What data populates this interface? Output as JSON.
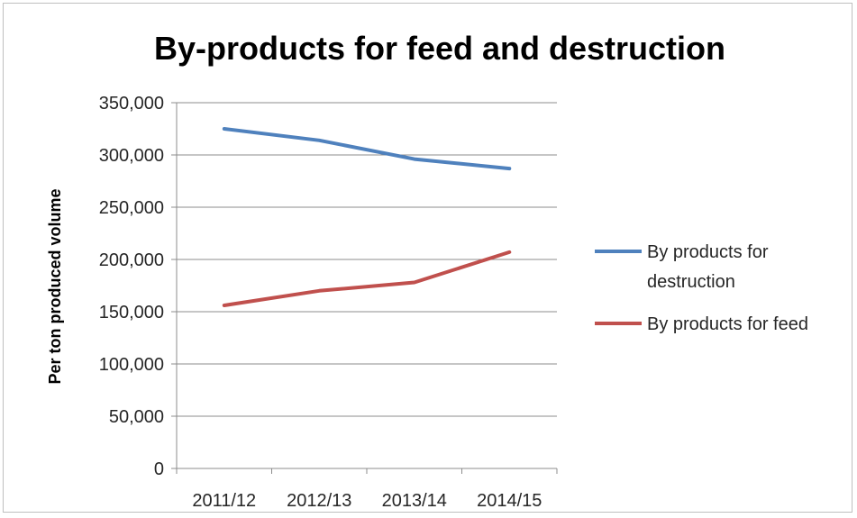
{
  "chart_data": {
    "type": "line",
    "title": "By-products for feed and destruction",
    "xlabel": "",
    "ylabel": "Per ton produced volume",
    "categories": [
      "2011/12",
      "2012/13",
      "2013/14",
      "2014/15"
    ],
    "ylim": [
      0,
      350000
    ],
    "yticks": [
      0,
      50000,
      100000,
      150000,
      200000,
      250000,
      300000,
      350000
    ],
    "ytick_labels": [
      "0",
      "50,000",
      "100,000",
      "150,000",
      "200,000",
      "250,000",
      "300,000",
      "350,000"
    ],
    "grid": true,
    "legend_position": "right",
    "series": [
      {
        "name": "By products for destruction",
        "legend_lines": [
          "By products for",
          "destruction"
        ],
        "color": "#4f81bd",
        "values": [
          325000,
          314000,
          296000,
          287000
        ]
      },
      {
        "name": "By products for feed",
        "legend_lines": [
          "By products for feed"
        ],
        "color": "#c0504d",
        "values": [
          156000,
          170000,
          178000,
          207000
        ]
      }
    ]
  }
}
